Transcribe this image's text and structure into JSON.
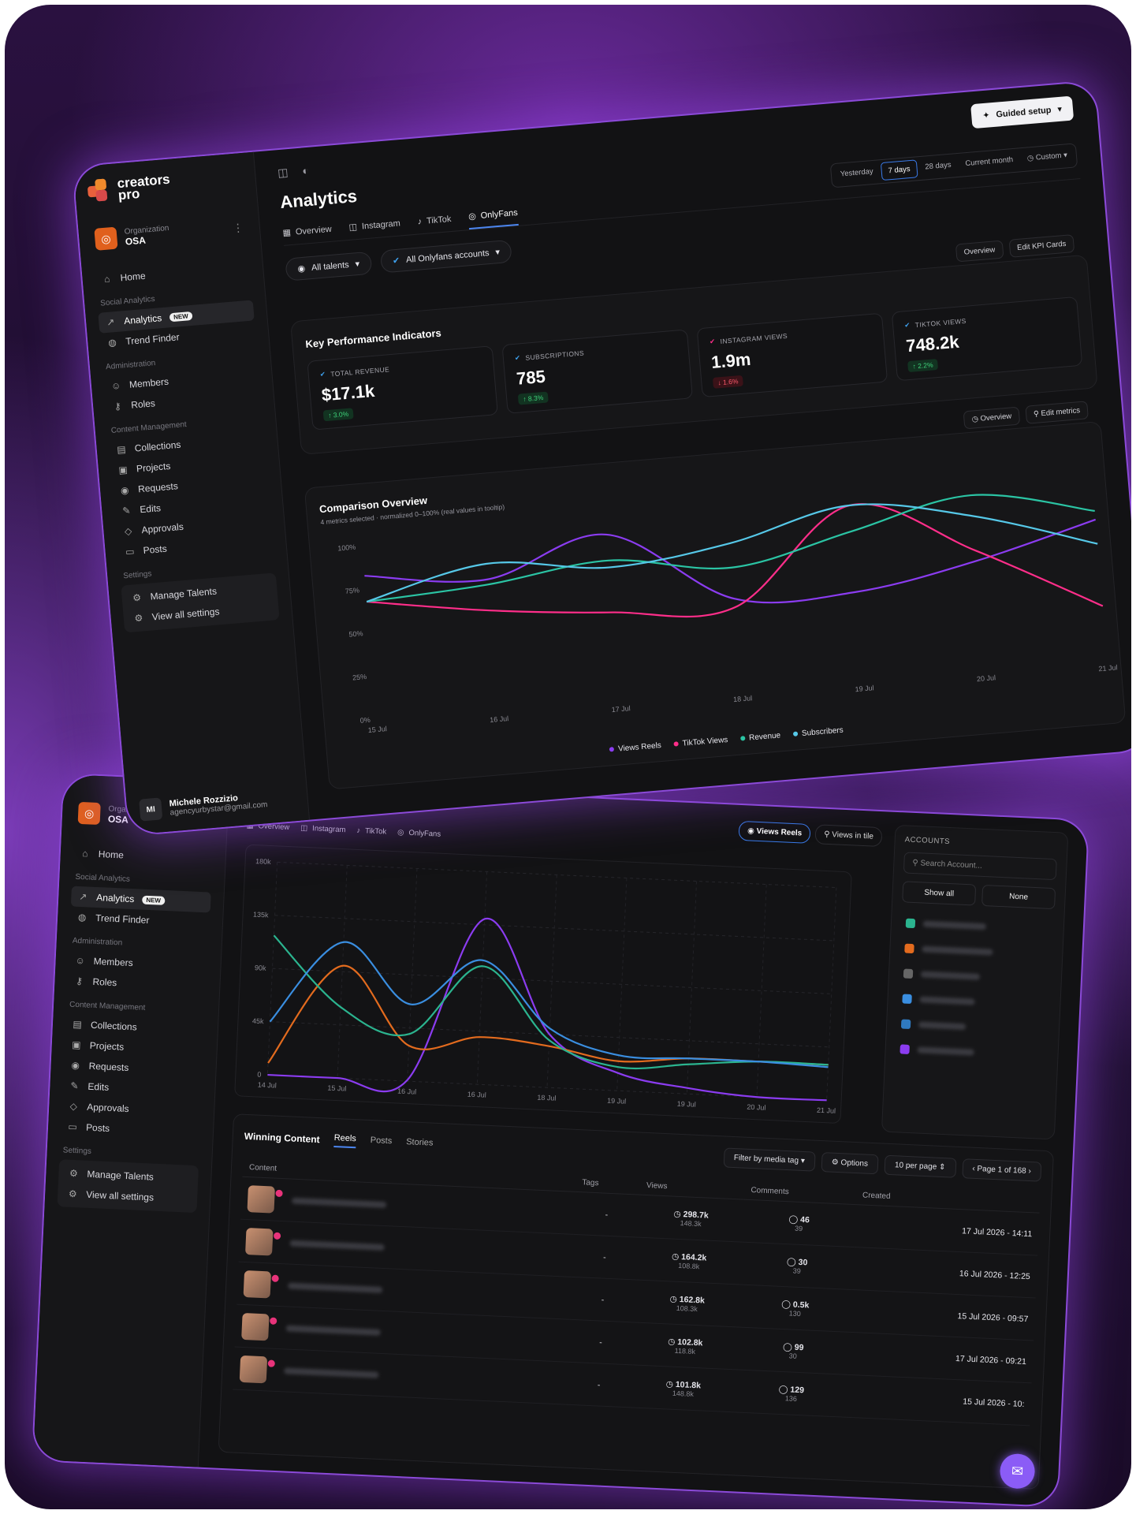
{
  "brand": {
    "name_line1": "creators",
    "name_line2": "pro"
  },
  "org": {
    "label": "Organization",
    "name": "OSA"
  },
  "sidebar": {
    "home": "Home",
    "sec_social": "Social Analytics",
    "analytics": "Analytics",
    "analytics_badge": "NEW",
    "trend": "Trend Finder",
    "sec_admin": "Administration",
    "members": "Members",
    "roles": "Roles",
    "sec_content": "Content Management",
    "collections": "Collections",
    "projects": "Projects",
    "requests": "Requests",
    "edits": "Edits",
    "approvals": "Approvals",
    "posts": "Posts",
    "sec_settings": "Settings",
    "manage_talents": "Manage Talents",
    "view_all_settings": "View all settings"
  },
  "user": {
    "initials": "MI",
    "name": "Michele Rozzizio",
    "email": "agencyurbystar@gmail.com"
  },
  "header": {
    "guided_setup": "Guided setup",
    "title": "Analytics"
  },
  "range": [
    "Yesterday",
    "7 days",
    "28 days",
    "Current month",
    "Custom"
  ],
  "tabs": [
    "Overview",
    "Instagram",
    "TikTok",
    "OnlyFans"
  ],
  "filters": {
    "talents": "All talents",
    "accounts": "All Onlyfans accounts"
  },
  "kpi": {
    "title": "Key Performance Indicators",
    "overview_btn": "Overview",
    "edit_btn": "Edit KPI Cards",
    "cards": [
      {
        "label": "Total Revenue",
        "value": "$17.1k",
        "change": "3.0%",
        "dir": "up"
      },
      {
        "label": "Subscriptions",
        "value": "785",
        "change": "8.3%",
        "dir": "up"
      },
      {
        "label": "Instagram Views",
        "value": "1.9m",
        "change": "1.6%",
        "dir": "down"
      },
      {
        "label": "TikTok Views",
        "value": "748.2k",
        "change": "2.2%",
        "dir": "up"
      }
    ]
  },
  "comparison": {
    "title": "Comparison Overview",
    "subtitle": "4 metrics selected · normalized 0–100% (real values in tooltip)",
    "overview_btn": "Overview",
    "edit_btn": "Edit metrics"
  },
  "chart_data": [
    {
      "type": "line",
      "title": "Comparison Overview",
      "x": [
        "15 Jul",
        "16 Jul",
        "17 Jul",
        "18 Jul",
        "19 Jul",
        "20 Jul",
        "21 Jul"
      ],
      "y_ticks": [
        "0%",
        "25%",
        "50%",
        "75%",
        "100%"
      ],
      "ylim": [
        0,
        100
      ],
      "series": [
        {
          "name": "Views Reels",
          "color": "#8b3cf0",
          "values": [
            83,
            75,
            95,
            52,
            50,
            62,
            80
          ]
        },
        {
          "name": "TikTok Views",
          "color": "#ff2e8a",
          "values": [
            68,
            57,
            50,
            47,
            100,
            68,
            30
          ]
        },
        {
          "name": "Revenue",
          "color": "#2bc4a4",
          "values": [
            68,
            72,
            80,
            70,
            85,
            100,
            85
          ]
        },
        {
          "name": "Subscribers",
          "color": "#56c8e8",
          "values": [
            68,
            84,
            76,
            84,
            100,
            88,
            66
          ]
        }
      ],
      "legend": "bottom"
    },
    {
      "type": "line",
      "title": "",
      "x": [
        "14 Jul",
        "15 Jul",
        "16 Jul",
        "16 Jul",
        "18 Jul",
        "19 Jul",
        "19 Jul",
        "20 Jul",
        "21 Jul"
      ],
      "y_ticks": [
        "0",
        "45k",
        "90k",
        "135k",
        "180k"
      ],
      "ylim": [
        0,
        180
      ],
      "series": [
        {
          "color": "#8b3cf0",
          "values": [
            0,
            0,
            1,
            140,
            45,
            15,
            5,
            0,
            0
          ]
        },
        {
          "color": "#e36b1e",
          "values": [
            10,
            95,
            30,
            40,
            35,
            25,
            30,
            30,
            30
          ]
        },
        {
          "color": "#2bb48f",
          "values": [
            118,
            60,
            40,
            100,
            40,
            20,
            25,
            30,
            30
          ]
        },
        {
          "color": "#3a8ee0",
          "values": [
            45,
            115,
            65,
            105,
            50,
            30,
            30,
            30,
            28
          ]
        }
      ],
      "legend": "bottom"
    }
  ],
  "instagram": {
    "title": "Instagram",
    "view_reels": "Views Reels",
    "views_tile": "Views in tile",
    "accounts_title": "ACCOUNTS",
    "search_placeholder": "Search Account...",
    "show_all": "Show all",
    "none": "None"
  },
  "winning": {
    "title": "Winning Content",
    "tabs": [
      "Reels",
      "Posts",
      "Stories"
    ],
    "filter": "Filter by media tag",
    "options": "Options",
    "per_page": "10 per page",
    "page": "Page 1 of 168",
    "headers": [
      "Content",
      "Tags",
      "Views",
      "Comments",
      "Created"
    ],
    "rows": [
      {
        "tags": "-",
        "views": "298.7k",
        "views_sub": "148.3k",
        "comments": "46",
        "comments_sub": "39",
        "created": "17 Jul 2026 - 14:11"
      },
      {
        "tags": "-",
        "views": "164.2k",
        "views_sub": "108.8k",
        "comments": "30",
        "comments_sub": "39",
        "created": "16 Jul 2026 - 12:25"
      },
      {
        "tags": "-",
        "views": "162.8k",
        "views_sub": "108.3k",
        "comments": "0.5k",
        "comments_sub": "130",
        "created": "15 Jul 2026 - 09:57"
      },
      {
        "tags": "-",
        "views": "102.8k",
        "views_sub": "118.8k",
        "comments": "99",
        "comments_sub": "30",
        "created": "17 Jul 2026 - 09:21"
      },
      {
        "tags": "-",
        "views": "101.8k",
        "views_sub": "148.8k",
        "comments": "129",
        "comments_sub": "136",
        "created": "15 Jul 2026 - 10:"
      }
    ]
  }
}
